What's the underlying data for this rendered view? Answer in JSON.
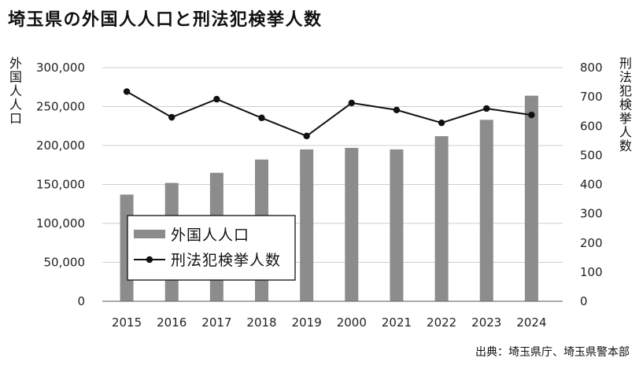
{
  "chart_data": {
    "type": "bar",
    "title": "埼玉県の外国人人口と刑法犯検挙人数",
    "categories": [
      "2015",
      "2016",
      "2017",
      "2018",
      "2019",
      "2000",
      "2021",
      "2022",
      "2023",
      "2024"
    ],
    "series": [
      {
        "name": "外国人人口",
        "type": "bar",
        "axis": "left",
        "color": "#8c8c8c",
        "values": [
          137000,
          152000,
          165000,
          182000,
          195000,
          197000,
          195000,
          212000,
          233000,
          264000
        ]
      },
      {
        "name": "刑法犯検挙人数",
        "type": "line",
        "axis": "right",
        "color": "#111111",
        "values": [
          718,
          630,
          692,
          628,
          566,
          679,
          655,
          611,
          660,
          638
        ]
      }
    ],
    "ylabel": "外国人人口",
    "y2label": "刑法犯検挙人数",
    "ylim": [
      0,
      300000
    ],
    "y2lim": [
      0,
      800
    ],
    "y_ticks": [
      {
        "value": 0,
        "label": "0"
      },
      {
        "value": 50000,
        "label": "50,000"
      },
      {
        "value": 100000,
        "label": "100,000"
      },
      {
        "value": 150000,
        "label": "150,000"
      },
      {
        "value": 200000,
        "label": "200,000"
      },
      {
        "value": 250000,
        "label": "250,000"
      },
      {
        "value": 300000,
        "label": "300,000"
      }
    ],
    "y2_ticks": [
      {
        "value": 0,
        "label": "0"
      },
      {
        "value": 100,
        "label": "100"
      },
      {
        "value": 200,
        "label": "200"
      },
      {
        "value": 300,
        "label": "300"
      },
      {
        "value": 400,
        "label": "400"
      },
      {
        "value": 500,
        "label": "500"
      },
      {
        "value": 600,
        "label": "600"
      },
      {
        "value": 700,
        "label": "700"
      },
      {
        "value": 800,
        "label": "800"
      }
    ],
    "grid": true,
    "legend_position": "lower-left"
  },
  "source": "出典：埼玉県庁、埼玉県警本部"
}
